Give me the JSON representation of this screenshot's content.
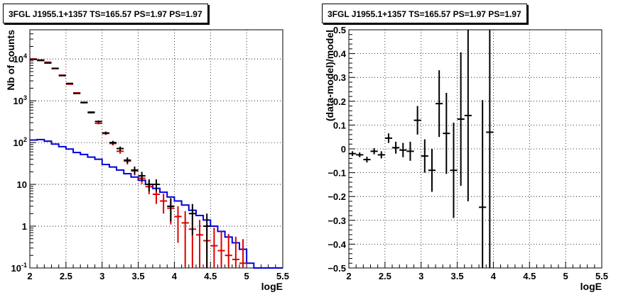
{
  "chart_data": [
    {
      "type": "line",
      "title": "3FGL J1955.1+1357 TS=165.57 PS=1.97 PS=1.97",
      "xlabel": "logE",
      "ylabel": "Nb of counts",
      "xlim": [
        2,
        5.5
      ],
      "ylim": [
        0.1,
        50000
      ],
      "yscale": "log",
      "grid": true,
      "x_ticks": [
        "2",
        "2.5",
        "3",
        "3.5",
        "4",
        "4.5",
        "5",
        "5.5"
      ],
      "y_ticks": [
        "10^{4}",
        "10^{3}",
        "10^{2}",
        "10",
        "1",
        "10^{-1}"
      ],
      "colors": {
        "data": "#000000",
        "model_total": "#dd0000",
        "model_source": "#0000dd"
      },
      "series": [
        {
          "role": "data",
          "x": [
            2.05,
            2.15,
            2.25,
            2.35,
            2.45,
            2.55,
            2.65,
            2.75,
            2.85,
            2.95,
            3.05,
            3.15,
            3.25,
            3.35,
            3.45,
            3.55,
            3.65,
            3.75,
            3.85,
            3.95,
            4.05,
            4.15,
            4.25,
            4.35,
            4.45,
            4.55,
            4.65,
            4.75,
            4.85,
            4.95
          ],
          "y": [
            9800,
            9200,
            8000,
            5900,
            4000,
            2600,
            1500,
            900,
            520,
            320,
            170,
            100,
            72,
            38,
            22,
            16,
            10,
            10,
            0,
            3,
            0,
            0,
            2,
            0,
            1,
            0,
            0,
            0,
            0,
            0
          ],
          "yerr": [
            100,
            96,
            90,
            77,
            63,
            51,
            39,
            30,
            23,
            18,
            13,
            10,
            8.5,
            6.2,
            4.7,
            4,
            3.2,
            3.2,
            0,
            1.7,
            0,
            0,
            1.4,
            0,
            1,
            0,
            0,
            0,
            0,
            0
          ]
        },
        {
          "role": "model_total",
          "x": [
            2.05,
            2.15,
            2.25,
            2.35,
            2.45,
            2.55,
            2.65,
            2.75,
            2.85,
            2.95,
            3.05,
            3.15,
            3.25,
            3.35,
            3.45,
            3.55,
            3.65,
            3.75,
            3.85,
            3.95,
            4.05,
            4.15,
            4.25,
            4.35,
            4.45,
            4.55,
            4.65,
            4.75,
            4.85,
            4.95
          ],
          "y": [
            10000,
            9500,
            8400,
            6000,
            4100,
            2500,
            1550,
            920,
            540,
            290,
            165,
            95,
            62,
            36,
            21,
            14,
            8.8,
            5.8,
            4,
            2.7,
            1.7,
            1.2,
            0.85,
            0.62,
            0.45,
            0.34,
            0.26,
            0.2,
            0.16,
            0.13
          ],
          "yerr": [
            100,
            97,
            92,
            77,
            64,
            50,
            39,
            30,
            23,
            17,
            13,
            9.7,
            7.9,
            6,
            4.6,
            3.7,
            3,
            2.4,
            2,
            1.6,
            1.3,
            1.1,
            0.92,
            0.79,
            0.67,
            0.58,
            0.51,
            0.45,
            0.4,
            0.36
          ]
        },
        {
          "role": "model_source",
          "step": true,
          "edges": [
            2.0,
            2.1,
            2.2,
            2.3,
            2.4,
            2.5,
            2.6,
            2.7,
            2.8,
            2.9,
            3.0,
            3.1,
            3.2,
            3.3,
            3.4,
            3.5,
            3.6,
            3.7,
            3.8,
            3.9,
            4.0,
            4.1,
            4.2,
            4.3,
            4.4,
            4.5,
            4.6,
            4.7,
            4.8,
            4.9,
            5.0,
            5.1,
            5.2,
            5.3,
            5.4,
            5.5
          ],
          "y": [
            115,
            118,
            108,
            92,
            80,
            70,
            58,
            52,
            45,
            40,
            30,
            26,
            22,
            18,
            15,
            12.5,
            10,
            8,
            6.5,
            5,
            4,
            3.2,
            2.4,
            1.8,
            1.4,
            1.0,
            0.75,
            0.55,
            0.4,
            0.28,
            0.13,
            0.1,
            0.1,
            0.1,
            0.1
          ]
        }
      ]
    },
    {
      "type": "scatter",
      "title": "3FGL J1955.1+1357 TS=165.57 PS=1.97 PS=1.97",
      "xlabel": "logE",
      "ylabel": "(data-model)/model",
      "xlim": [
        2,
        5.5
      ],
      "ylim": [
        -0.5,
        0.5
      ],
      "grid": true,
      "x_ticks": [
        "2",
        "2.5",
        "3",
        "3.5",
        "4",
        "4.5",
        "5",
        "5.5"
      ],
      "y_ticks": [
        "0.5",
        "0.4",
        "0.3",
        "0.2",
        "0.1",
        "0",
        "−0.1",
        "−0.2",
        "−0.3",
        "−0.4",
        "−0.5"
      ],
      "color": "#000000",
      "points": {
        "x": [
          2.05,
          2.15,
          2.25,
          2.35,
          2.45,
          2.55,
          2.65,
          2.75,
          2.85,
          2.95,
          3.05,
          3.15,
          3.25,
          3.35,
          3.45,
          3.55,
          3.65,
          3.85,
          3.95
        ],
        "y": [
          -0.02,
          -0.025,
          -0.045,
          -0.01,
          -0.025,
          0.045,
          0.005,
          -0.005,
          -0.01,
          0.12,
          -0.03,
          -0.09,
          0.19,
          0.065,
          -0.09,
          0.125,
          0.14,
          -0.245,
          0.07
        ],
        "yerr": [
          0.01,
          0.01,
          0.012,
          0.013,
          0.015,
          0.02,
          0.025,
          0.03,
          0.04,
          0.06,
          0.07,
          0.09,
          0.14,
          0.17,
          0.2,
          0.28,
          0.36,
          0.45,
          0.6
        ]
      }
    }
  ]
}
